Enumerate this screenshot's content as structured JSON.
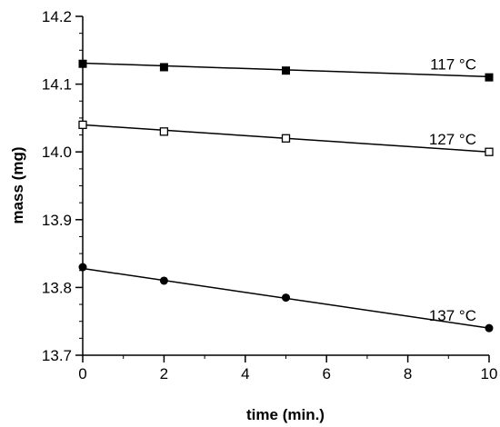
{
  "chart_data": {
    "type": "line",
    "xlabel": "time (min.)",
    "ylabel": "mass (mg)",
    "xlim": [
      0,
      10
    ],
    "ylim": [
      13.7,
      14.2
    ],
    "x_ticks": [
      0,
      2,
      4,
      6,
      8,
      10
    ],
    "x_tick_labels": [
      "0",
      "2",
      "4",
      "6",
      "8",
      "10"
    ],
    "y_ticks": [
      13.7,
      13.8,
      13.9,
      14.0,
      14.1,
      14.2
    ],
    "y_tick_labels": [
      "13.7",
      "13.8",
      "13.9",
      "14.0",
      "14.1",
      "14.2"
    ],
    "grid": false,
    "series": [
      {
        "name": "117 °C",
        "marker": "filled-square",
        "points": [
          {
            "x": 0,
            "y": 14.13
          },
          {
            "x": 2,
            "y": 14.125
          },
          {
            "x": 5,
            "y": 14.12
          },
          {
            "x": 10,
            "y": 14.11
          }
        ],
        "fit": {
          "x0": 0,
          "y0": 14.131,
          "x1": 10,
          "y1": 14.111
        }
      },
      {
        "name": "127 °C",
        "marker": "open-square",
        "points": [
          {
            "x": 0,
            "y": 14.04
          },
          {
            "x": 2,
            "y": 14.03
          },
          {
            "x": 5,
            "y": 14.02
          },
          {
            "x": 10,
            "y": 14.0
          }
        ],
        "fit": {
          "x0": 0,
          "y0": 14.04,
          "x1": 10,
          "y1": 14.0
        }
      },
      {
        "name": "137 °C",
        "marker": "filled-circle",
        "points": [
          {
            "x": 0,
            "y": 13.83
          },
          {
            "x": 2,
            "y": 13.81
          },
          {
            "x": 5,
            "y": 13.785
          },
          {
            "x": 10,
            "y": 13.74
          }
        ],
        "fit": {
          "x0": 0,
          "y0": 13.828,
          "x1": 10,
          "y1": 13.74
        }
      }
    ]
  }
}
